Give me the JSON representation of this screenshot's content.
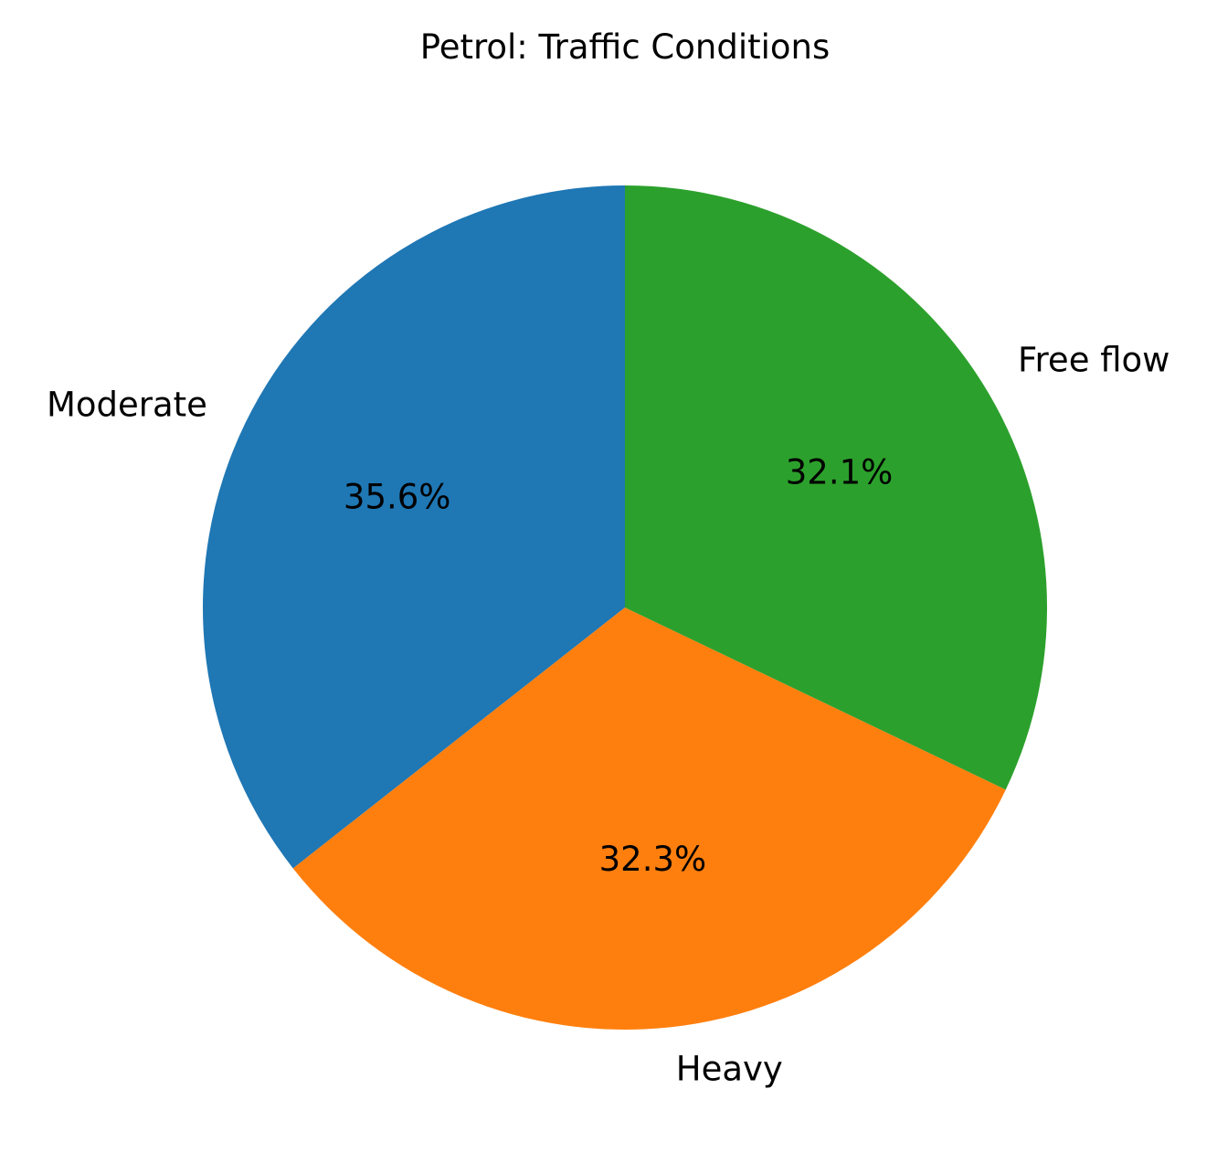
{
  "chart_data": {
    "type": "pie",
    "title": "Petrol: Traffic Conditions",
    "categories": [
      "Moderate",
      "Heavy",
      "Free flow"
    ],
    "values": [
      35.6,
      32.3,
      32.1
    ],
    "value_labels": [
      "35.6%",
      "32.3%",
      "32.1%"
    ],
    "colors": [
      "#1f77b4",
      "#ff7f0e",
      "#2ca02c"
    ],
    "start_angle_deg": 90,
    "direction": "counterclockwise"
  }
}
